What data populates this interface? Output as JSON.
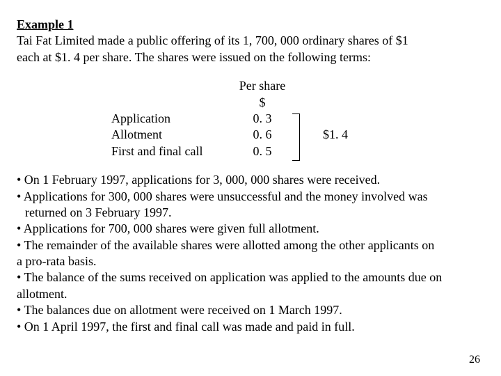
{
  "heading": "Example 1",
  "intro_line1": "Tai Fat Limited made a public offering of its 1, 700, 000 ordinary shares of $1",
  "intro_line2": "each at $1. 4 per share. The shares were issued on the following terms:",
  "table": {
    "header1": "Per share",
    "header2": "$",
    "rows": [
      {
        "label": "Application",
        "value": "0. 3"
      },
      {
        "label": "Allotment",
        "value": "0. 6"
      },
      {
        "label": "First and final call",
        "value": "0. 5"
      }
    ],
    "total": "$1. 4"
  },
  "bullets": [
    "• On 1 February 1997, applications for 3, 000, 000 shares were received.",
    "• Applications for 300, 000 shares were unsuccessful and the money involved was",
    "  returned on 3 February 1997.",
    "• Applications for 700, 000 shares were given full allotment.",
    "• The remainder of the available shares were allotted among the other applicants on",
    "a pro-rata basis.",
    "• The balance of the sums received on application was applied to the amounts due on",
    "allotment.",
    "• The balances due on allotment were received on 1 March 1997.",
    "• On 1 April 1997, the first and final call was made and paid in full."
  ],
  "page_number": "26",
  "colors": {
    "text": "#000000",
    "background": "#ffffff"
  },
  "typography": {
    "font_family": "Times New Roman",
    "body_fontsize_pt": 14
  }
}
